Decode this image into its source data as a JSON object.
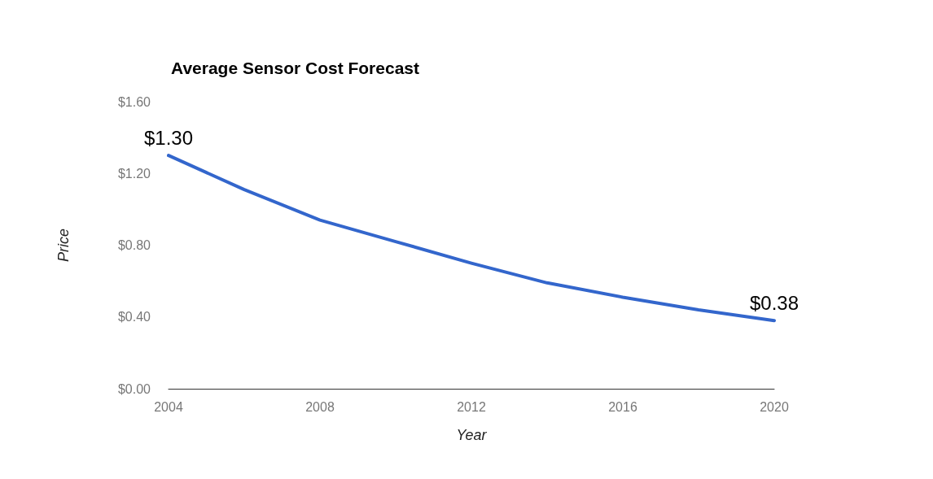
{
  "chart_data": {
    "type": "line",
    "title": "Average Sensor Cost Forecast",
    "xlabel": "Year",
    "ylabel": "Price",
    "x": [
      2004,
      2006,
      2008,
      2010,
      2012,
      2014,
      2016,
      2018,
      2020
    ],
    "series": [
      {
        "color": "#3366cc",
        "values": [
          1.3,
          1.11,
          0.94,
          0.82,
          0.7,
          0.59,
          0.51,
          0.44,
          0.38
        ],
        "value_labels": [
          "$1.30",
          null,
          null,
          null,
          null,
          null,
          null,
          null,
          "$0.38"
        ]
      }
    ],
    "xlim": [
      2004,
      2020
    ],
    "xticks": [
      2004,
      2008,
      2012,
      2016,
      2020
    ],
    "ylim": [
      0,
      1.6
    ],
    "yticks": [
      {
        "value": 0,
        "label": "$0.00"
      },
      {
        "value": 0.4,
        "label": "$0.40"
      },
      {
        "value": 0.8,
        "label": "$0.80"
      },
      {
        "value": 1.2,
        "label": "$1.20"
      },
      {
        "value": 1.6,
        "label": "$1.60"
      }
    ],
    "marker": "none",
    "line_style": "solid"
  }
}
